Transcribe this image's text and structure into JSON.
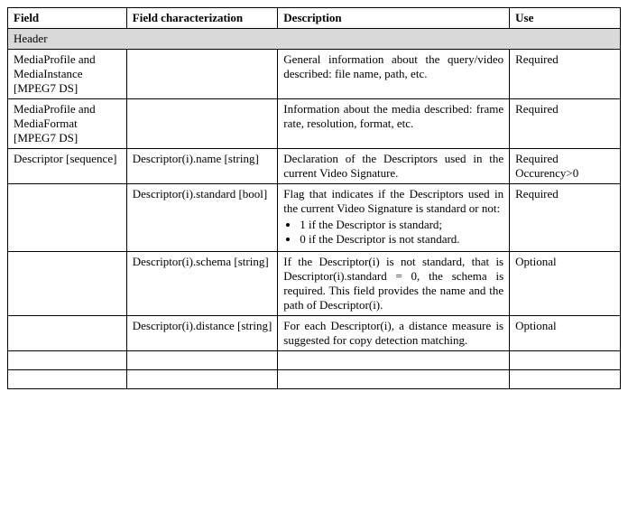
{
  "columns": {
    "field": "Field",
    "char": "Field characterization",
    "desc": "Description",
    "use": "Use"
  },
  "section": "Header",
  "rows": {
    "r1": {
      "field": "MediaProfile and MediaInstance [MPEG7 DS]",
      "char": "",
      "desc": "General information about the query/video described: file name, path, etc.",
      "use": "Required"
    },
    "r2": {
      "field": "MediaProfile and MediaFormat [MPEG7 DS]",
      "char": "",
      "desc": "Information about the media described: frame rate, resolution, format, etc.",
      "use": "Required"
    },
    "r3": {
      "field": "Descriptor [sequence]",
      "char": "Descriptor(i).name [string]",
      "desc": "Declaration of the Descriptors used in the current Video Signature.",
      "use": "Required Occurency>0"
    },
    "r4": {
      "field": "",
      "char": "Descriptor(i).standard [bool]",
      "desc_pre": "Flag that indicates if the Descriptors used in the current Video Signature is standard or not:",
      "desc_b1": "1 if the Descriptor is standard;",
      "desc_b2": "0 if the Descriptor is not standard.",
      "use": "Required"
    },
    "r5": {
      "field": "",
      "char": "Descriptor(i).schema [string]",
      "desc": "If the Descriptor(i) is not standard, that is Descriptor(i).standard = 0, the schema is required. This field provides the name and the path of Descriptor(i).",
      "use": "Optional"
    },
    "r6": {
      "field": "",
      "char": "Descriptor(i).distance [string]",
      "desc": "For each Descriptor(i), a distance measure is suggested for copy detection matching.",
      "use": "Optional"
    }
  }
}
